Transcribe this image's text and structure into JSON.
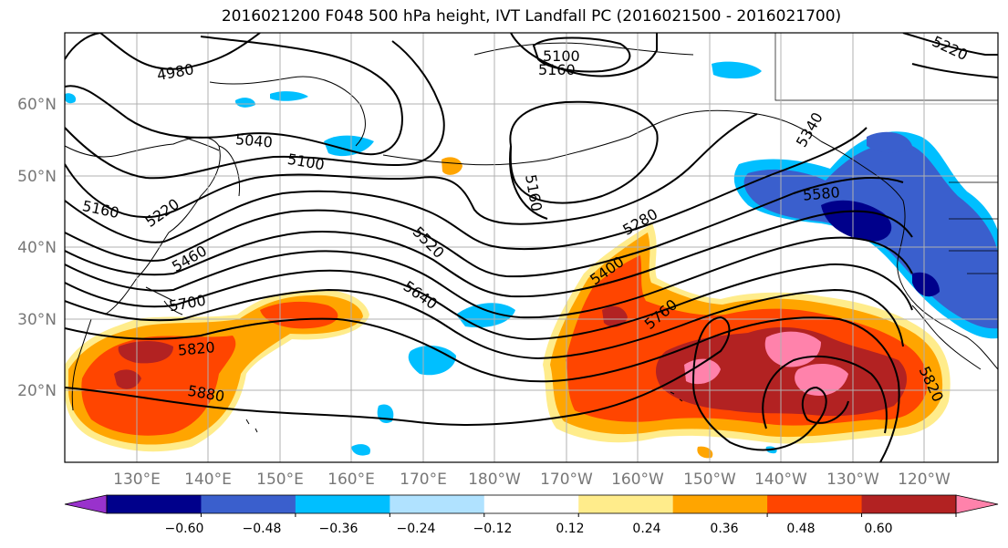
{
  "title": "2016021200 F048 500 hPa height, IVT Landfall PC (2016021500 - 2016021700)",
  "lat_labels": [
    "60°N",
    "50°N",
    "40°N",
    "30°N",
    "20°N"
  ],
  "lon_labels": [
    "130°E",
    "140°E",
    "150°E",
    "160°E",
    "170°E",
    "180°W",
    "170°W",
    "160°W",
    "150°W",
    "140°W",
    "130°W",
    "120°W"
  ],
  "contour_labels": [
    "4980",
    "5040",
    "5100",
    "5160",
    "5160",
    "5160",
    "5220",
    "5220",
    "5280",
    "5340",
    "5400",
    "5460",
    "5520",
    "5580",
    "5640",
    "5700",
    "5760",
    "5820",
    "5820",
    "5880",
    "5100"
  ],
  "colorbar": {
    "tick_labels": [
      "−0.60",
      "−0.48",
      "−0.36",
      "−0.24",
      "−0.12",
      "0.12",
      "0.24",
      "0.36",
      "0.48",
      "0.60"
    ],
    "colors": [
      "#9932cc",
      "#00008b",
      "#3a5fcd",
      "#00bfff",
      "#b0e2ff",
      "#ffffff",
      "#ffec8b",
      "#ffa500",
      "#ff4500",
      "#b22222",
      "#ff82ab"
    ]
  }
}
